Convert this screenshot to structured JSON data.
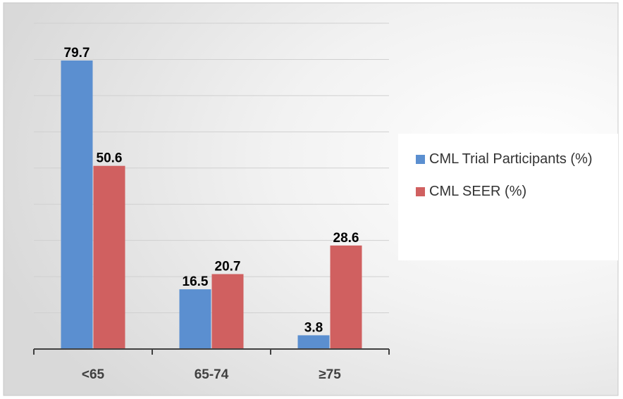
{
  "chart_data": {
    "type": "bar",
    "categories": [
      "<65",
      "65-74",
      "≥75"
    ],
    "series": [
      {
        "name": "CML Trial Participants (%)",
        "color": "#5b8fd0",
        "values": [
          79.7,
          16.5,
          3.8
        ]
      },
      {
        "name": "CML SEER (%)",
        "color": "#d06060",
        "values": [
          50.6,
          20.7,
          28.6
        ]
      }
    ],
    "ylim": [
      0,
      90
    ],
    "yticks": [
      0,
      10,
      20,
      30,
      40,
      50,
      60,
      70,
      80,
      90
    ],
    "grid": true,
    "legend": "right"
  }
}
